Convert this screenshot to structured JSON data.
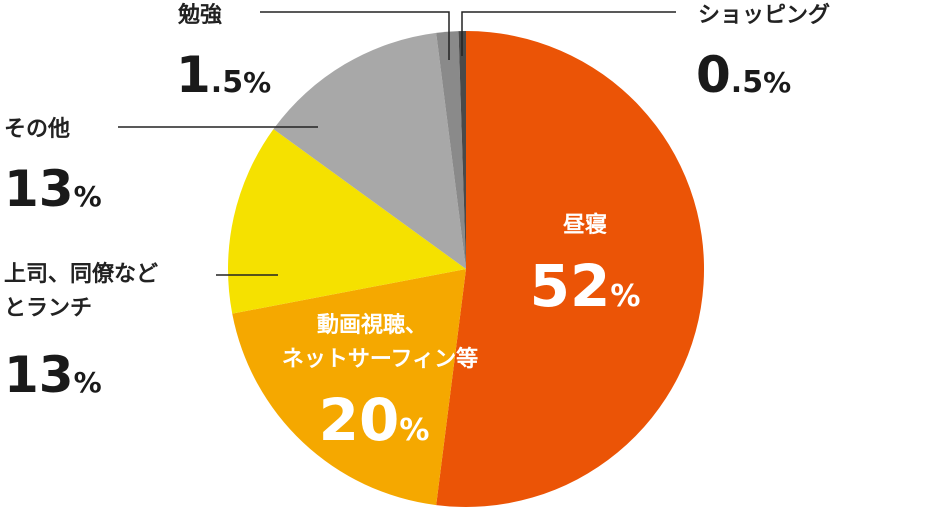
{
  "chart_data": {
    "type": "pie",
    "categories": [
      "昼寝",
      "動画視聴、ネットサーフィン等",
      "上司、同僚などとランチ",
      "その他",
      "勉強",
      "ショッピング"
    ],
    "values": [
      52,
      20,
      13,
      13,
      1.5,
      0.5
    ],
    "colors": [
      "#EB5406",
      "#F5A800",
      "#F5E100",
      "#A8A8A8",
      "#8A8A8A",
      "#4A4A4A"
    ],
    "labels": [
      {
        "lines": [
          "昼寝"
        ],
        "num": "52",
        "unit": "%"
      },
      {
        "lines": [
          "動画視聴、",
          "ネットサーフィン等"
        ],
        "num": "20",
        "unit": "%"
      },
      {
        "lines": [
          "上司、同僚など",
          "とランチ"
        ],
        "num": "13",
        "unit": "%"
      },
      {
        "lines": [
          "その他"
        ],
        "num": "13",
        "unit": "%"
      },
      {
        "lines": [
          "勉強"
        ],
        "num": "1",
        "dec": ".5",
        "unit": "%"
      },
      {
        "lines": [
          "ショッピング"
        ],
        "num": "0",
        "dec": ".5",
        "unit": "%"
      }
    ]
  }
}
